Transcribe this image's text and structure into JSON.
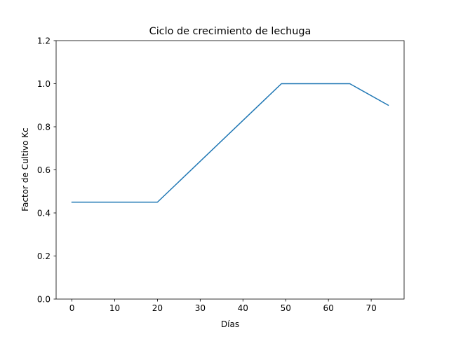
{
  "chart_data": {
    "type": "line",
    "title": "Ciclo de crecimiento de lechuga",
    "xlabel": "Días",
    "ylabel": "Factor de Cultivo Kc",
    "xlim": [
      -3.7,
      77.7
    ],
    "ylim": [
      0.0,
      1.2
    ],
    "xticks": [
      0,
      10,
      20,
      30,
      40,
      50,
      60,
      70
    ],
    "yticks": [
      0.0,
      0.2,
      0.4,
      0.6,
      0.8,
      1.0,
      1.2
    ],
    "ytick_labels": [
      "0.0",
      "0.2",
      "0.4",
      "0.6",
      "0.8",
      "1.0",
      "1.2"
    ],
    "grid": false,
    "series": [
      {
        "color": "#1f77b4",
        "points": [
          {
            "x": 0,
            "y": 0.45
          },
          {
            "x": 20,
            "y": 0.45
          },
          {
            "x": 49,
            "y": 1.0
          },
          {
            "x": 65,
            "y": 1.0
          },
          {
            "x": 74,
            "y": 0.9
          }
        ]
      }
    ]
  }
}
